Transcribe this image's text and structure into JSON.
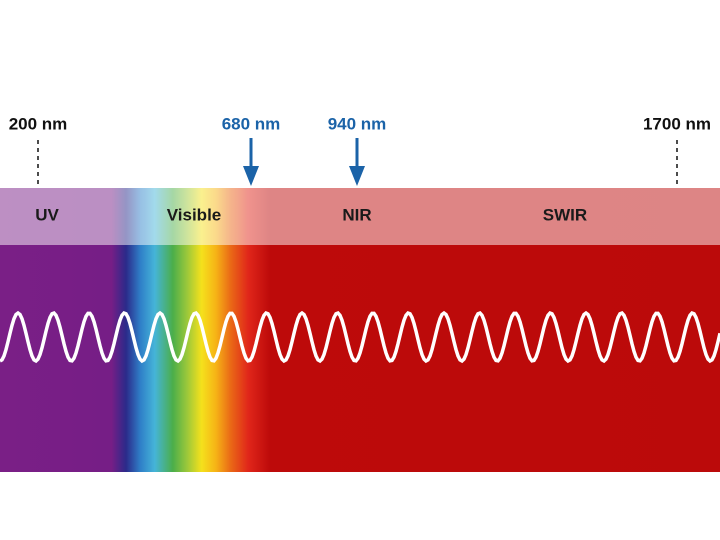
{
  "markers": [
    {
      "label": "200 nm"
    },
    {
      "label": "680 nm"
    },
    {
      "label": "940 nm"
    },
    {
      "label": "1700 nm"
    }
  ],
  "bands": [
    {
      "label": "UV"
    },
    {
      "label": "Visible"
    },
    {
      "label": "NIR"
    },
    {
      "label": "SWIR"
    }
  ]
}
